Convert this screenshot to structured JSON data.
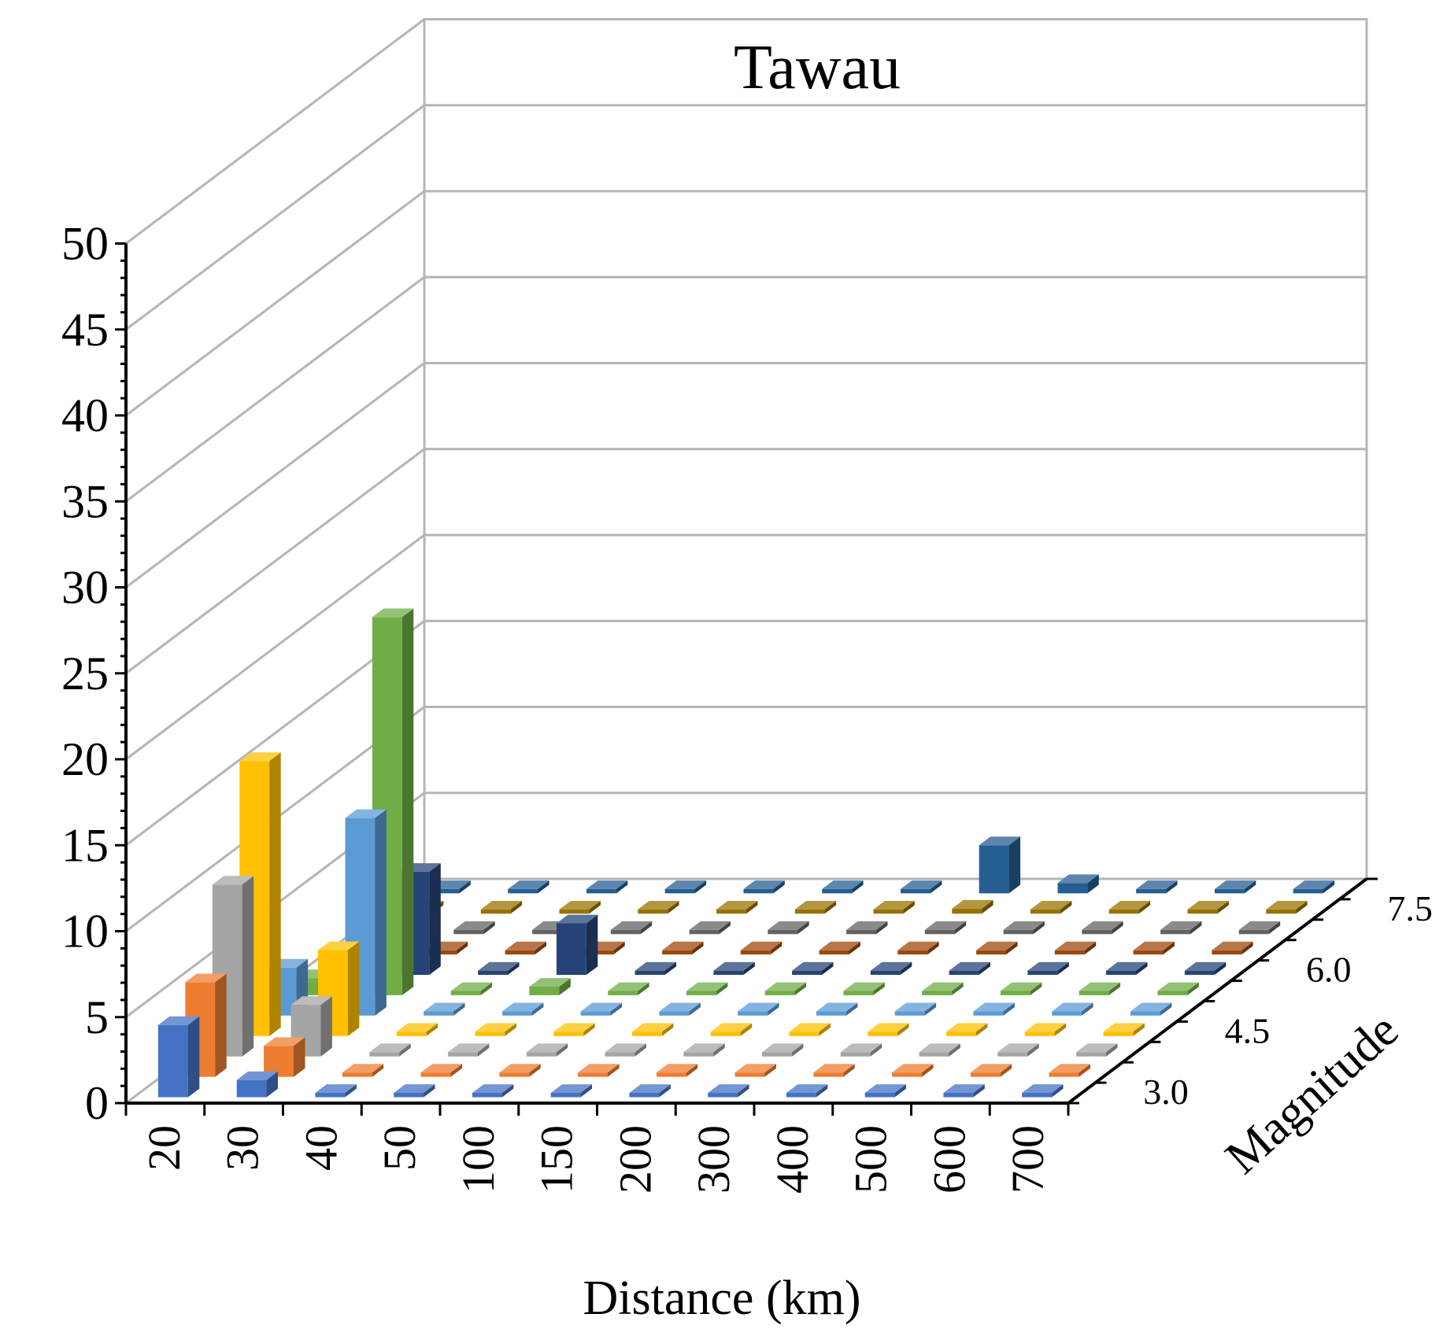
{
  "chart_data": {
    "type": "bar3d",
    "title": "Tawau",
    "xlabel": "Distance (km)",
    "ylabel": "",
    "zlabel": "Magnitude",
    "ylim": [
      0,
      50
    ],
    "y_ticks": [
      "0",
      "5",
      "10",
      "15",
      "20",
      "25",
      "30",
      "35",
      "40",
      "45",
      "50"
    ],
    "grid": true,
    "legend": "none",
    "categories": [
      "20",
      "30",
      "40",
      "50",
      "100",
      "150",
      "200",
      "300",
      "400",
      "500",
      "600",
      "700"
    ],
    "depth_tick_labels": [
      "3.0",
      "4.5",
      "6.0",
      "7.5"
    ],
    "depth_tick_rows": [
      0,
      3,
      6,
      9
    ],
    "series": [
      {
        "color": "#4472C4",
        "values": [
          4.2,
          1.0,
          0,
          0,
          0,
          0,
          0,
          0,
          0,
          0,
          0,
          0
        ]
      },
      {
        "color": "#ED7D31",
        "values": [
          5.5,
          1.8,
          0,
          0,
          0,
          0,
          0,
          0,
          0,
          0,
          0,
          0
        ]
      },
      {
        "color": "#A5A5A5",
        "values": [
          10.0,
          3.0,
          0,
          0,
          0,
          0,
          0,
          0,
          0,
          0,
          0,
          0
        ]
      },
      {
        "color": "#FFC000",
        "values": [
          16.0,
          5.0,
          0,
          0,
          0,
          0,
          0,
          0,
          0,
          0,
          0,
          0
        ]
      },
      {
        "color": "#5B9BD5",
        "values": [
          2.8,
          11.5,
          0,
          0,
          0,
          0,
          0,
          0,
          0,
          0,
          0,
          0
        ]
      },
      {
        "color": "#70AD47",
        "values": [
          1.0,
          22.0,
          0,
          0.5,
          0,
          0,
          0,
          0,
          0,
          0,
          0,
          0
        ]
      },
      {
        "color": "#264478",
        "values": [
          0,
          6.0,
          0,
          3.0,
          0,
          0,
          0,
          0,
          0,
          0,
          0,
          0
        ]
      },
      {
        "color": "#9E480E",
        "values": [
          0,
          0,
          0,
          0,
          0,
          0,
          0,
          0,
          0,
          0,
          0,
          0
        ]
      },
      {
        "color": "#636363",
        "values": [
          0,
          0,
          0,
          0,
          0,
          0,
          0,
          0,
          0,
          0,
          0,
          0
        ]
      },
      {
        "color": "#997300",
        "values": [
          0,
          0,
          0,
          0,
          0,
          0,
          0,
          0.3,
          0,
          0,
          0,
          0
        ]
      },
      {
        "color": "#255E91",
        "values": [
          0,
          0,
          0,
          0,
          0,
          0,
          0,
          2.8,
          0.6,
          0,
          0,
          0
        ]
      }
    ]
  }
}
